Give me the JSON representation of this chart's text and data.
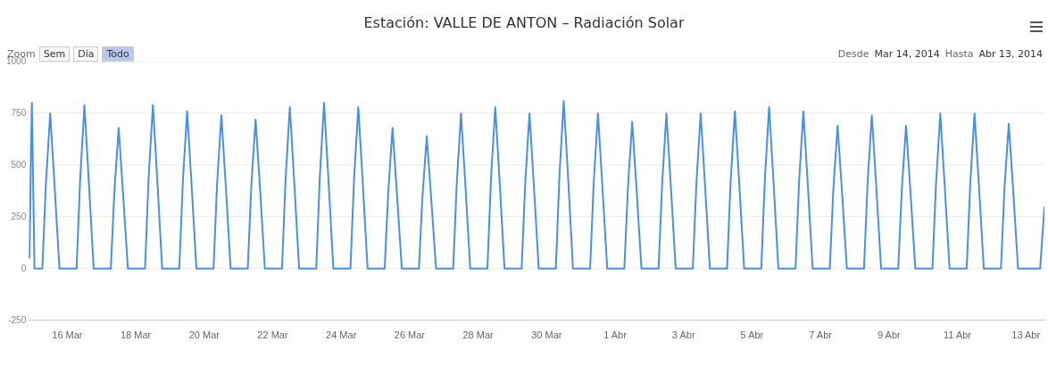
{
  "chart_data": {
    "type": "line",
    "title": "Estación: VALLE DE ANTON – Radiación Solar",
    "annotations": [
      "Zoom",
      "Sem",
      "Día",
      "Todo",
      "Desde",
      "Mar 14, 2014",
      "Hasta",
      "Abr 13, 2014"
    ],
    "xlim": [
      "2014-03-14T21:00",
      "2014-04-13T13:00"
    ],
    "xticks": [
      {
        "value": "2014-03-16",
        "label": "16 Mar"
      },
      {
        "value": "2014-03-18",
        "label": "18 Mar"
      },
      {
        "value": "2014-03-20",
        "label": "20 Mar"
      },
      {
        "value": "2014-03-22",
        "label": "22 Mar"
      },
      {
        "value": "2014-03-24",
        "label": "24 Mar"
      },
      {
        "value": "2014-03-26",
        "label": "26 Mar"
      },
      {
        "value": "2014-03-28",
        "label": "28 Mar"
      },
      {
        "value": "2014-03-30",
        "label": "30 Mar"
      },
      {
        "value": "2014-04-01",
        "label": "1 Abr"
      },
      {
        "value": "2014-04-03",
        "label": "3 Abr"
      },
      {
        "value": "2014-04-05",
        "label": "5 Abr"
      },
      {
        "value": "2014-04-07",
        "label": "7 Abr"
      },
      {
        "value": "2014-04-09",
        "label": "9 Abr"
      },
      {
        "value": "2014-04-11",
        "label": "11 Abr"
      },
      {
        "value": "2014-04-13",
        "label": "13 Abr"
      }
    ],
    "ylim": [
      -250,
      1000
    ],
    "yticks": [
      -250,
      0,
      250,
      500,
      750,
      1000
    ],
    "grid": "y",
    "legend": false,
    "marker": "none",
    "line_style": "solid",
    "series": [
      {
        "color": "#4a90e2",
        "x": [
          "2014-03-14T21:30",
          "2014-03-14T22:30",
          "2014-03-14T23:10",
          "2014-03-15T01:00",
          "2014-03-15T06:30",
          "2014-03-15T09:00",
          "2014-03-15T12:00",
          "2014-03-15T15:00",
          "2014-03-15T18:30",
          "2014-03-16T06:30",
          "2014-03-16T09:00",
          "2014-03-16T12:00",
          "2014-03-16T15:00",
          "2014-03-16T18:30",
          "2014-03-17T06:30",
          "2014-03-17T09:00",
          "2014-03-17T12:00",
          "2014-03-17T15:00",
          "2014-03-17T18:30",
          "2014-03-18T06:30",
          "2014-03-18T09:00",
          "2014-03-18T12:00",
          "2014-03-18T15:00",
          "2014-03-18T18:30",
          "2014-03-19T06:30",
          "2014-03-19T09:00",
          "2014-03-19T12:00",
          "2014-03-19T15:00",
          "2014-03-19T18:30",
          "2014-03-20T06:30",
          "2014-03-20T09:00",
          "2014-03-20T12:00",
          "2014-03-20T15:00",
          "2014-03-20T18:30",
          "2014-03-21T06:30",
          "2014-03-21T09:00",
          "2014-03-21T12:00",
          "2014-03-21T15:00",
          "2014-03-21T18:30",
          "2014-03-22T06:30",
          "2014-03-22T09:00",
          "2014-03-22T12:00",
          "2014-03-22T15:00",
          "2014-03-22T18:30",
          "2014-03-23T06:30",
          "2014-03-23T09:00",
          "2014-03-23T12:00",
          "2014-03-23T15:00",
          "2014-03-23T18:30",
          "2014-03-24T06:30",
          "2014-03-24T09:00",
          "2014-03-24T12:00",
          "2014-03-24T15:00",
          "2014-03-24T18:30",
          "2014-03-25T06:30",
          "2014-03-25T09:00",
          "2014-03-25T12:00",
          "2014-03-25T15:00",
          "2014-03-25T18:30",
          "2014-03-26T06:30",
          "2014-03-26T09:00",
          "2014-03-26T12:00",
          "2014-03-26T15:00",
          "2014-03-26T18:30",
          "2014-03-27T06:30",
          "2014-03-27T09:00",
          "2014-03-27T12:00",
          "2014-03-27T15:00",
          "2014-03-27T18:30",
          "2014-03-28T06:30",
          "2014-03-28T09:00",
          "2014-03-28T12:00",
          "2014-03-28T15:00",
          "2014-03-28T18:30",
          "2014-03-29T06:30",
          "2014-03-29T09:00",
          "2014-03-29T12:00",
          "2014-03-29T15:00",
          "2014-03-29T18:30",
          "2014-03-30T06:30",
          "2014-03-30T09:00",
          "2014-03-30T12:00",
          "2014-03-30T15:00",
          "2014-03-30T18:30",
          "2014-03-31T06:30",
          "2014-03-31T09:00",
          "2014-03-31T12:00",
          "2014-03-31T15:00",
          "2014-03-31T18:30",
          "2014-04-01T06:30",
          "2014-04-01T09:00",
          "2014-04-01T12:00",
          "2014-04-01T15:00",
          "2014-04-01T18:30",
          "2014-04-02T06:30",
          "2014-04-02T09:00",
          "2014-04-02T12:00",
          "2014-04-02T15:00",
          "2014-04-02T18:30",
          "2014-04-03T06:30",
          "2014-04-03T09:00",
          "2014-04-03T12:00",
          "2014-04-03T15:00",
          "2014-04-03T18:30",
          "2014-04-04T06:30",
          "2014-04-04T09:00",
          "2014-04-04T12:00",
          "2014-04-04T15:00",
          "2014-04-04T18:30",
          "2014-04-05T06:30",
          "2014-04-05T09:00",
          "2014-04-05T12:00",
          "2014-04-05T15:00",
          "2014-04-05T18:30",
          "2014-04-06T06:30",
          "2014-04-06T09:00",
          "2014-04-06T12:00",
          "2014-04-06T15:00",
          "2014-04-06T18:30",
          "2014-04-07T06:30",
          "2014-04-07T09:00",
          "2014-04-07T12:00",
          "2014-04-07T15:00",
          "2014-04-07T18:30",
          "2014-04-08T06:30",
          "2014-04-08T09:00",
          "2014-04-08T12:00",
          "2014-04-08T15:00",
          "2014-04-08T18:30",
          "2014-04-09T06:30",
          "2014-04-09T09:00",
          "2014-04-09T12:00",
          "2014-04-09T15:00",
          "2014-04-09T18:30",
          "2014-04-10T06:30",
          "2014-04-10T09:00",
          "2014-04-10T12:00",
          "2014-04-10T15:00",
          "2014-04-10T18:30",
          "2014-04-11T06:30",
          "2014-04-11T09:00",
          "2014-04-11T12:00",
          "2014-04-11T15:00",
          "2014-04-11T18:30",
          "2014-04-12T06:30",
          "2014-04-12T09:00",
          "2014-04-12T12:00",
          "2014-04-12T15:00",
          "2014-04-12T18:30",
          "2014-04-13T10:00",
          "2014-04-13T13:00"
        ],
        "values": [
          50,
          550,
          800,
          0,
          0,
          410,
          750,
          410,
          0,
          0,
          430,
          790,
          430,
          0,
          0,
          370,
          680,
          370,
          0,
          0,
          440,
          790,
          440,
          0,
          0,
          420,
          760,
          420,
          0,
          0,
          410,
          740,
          410,
          0,
          0,
          400,
          720,
          400,
          0,
          0,
          430,
          780,
          430,
          0,
          0,
          440,
          800,
          440,
          0,
          0,
          430,
          780,
          430,
          0,
          0,
          370,
          680,
          370,
          0,
          0,
          350,
          640,
          350,
          0,
          0,
          410,
          750,
          410,
          0,
          0,
          430,
          780,
          430,
          0,
          0,
          410,
          750,
          410,
          0,
          0,
          450,
          810,
          450,
          0,
          0,
          410,
          750,
          410,
          0,
          0,
          390,
          710,
          390,
          0,
          0,
          410,
          750,
          410,
          0,
          0,
          410,
          750,
          410,
          0,
          0,
          420,
          760,
          420,
          0,
          0,
          430,
          780,
          430,
          0,
          0,
          420,
          760,
          420,
          0,
          0,
          380,
          690,
          380,
          0,
          0,
          410,
          740,
          410,
          0,
          0,
          380,
          690,
          380,
          0,
          0,
          410,
          750,
          410,
          0,
          0,
          410,
          750,
          410,
          0,
          0,
          390,
          700,
          390,
          0,
          0,
          300
        ]
      }
    ]
  }
}
